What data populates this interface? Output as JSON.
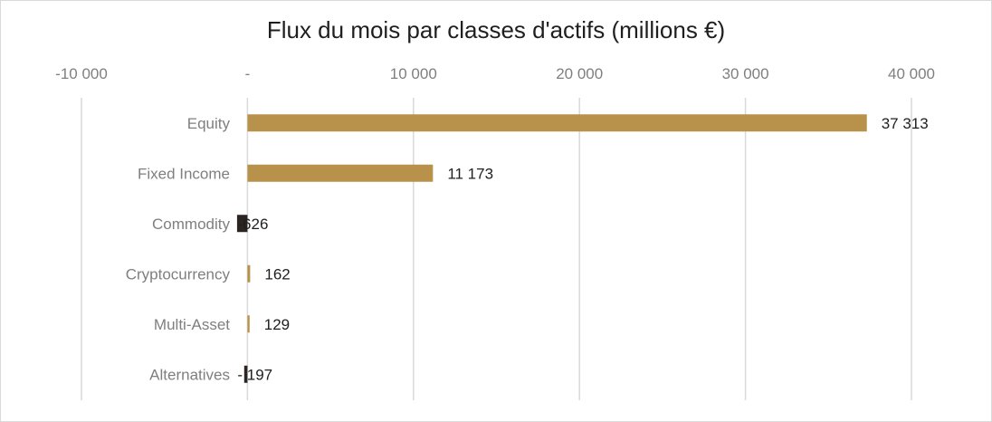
{
  "chart_data": {
    "type": "bar",
    "orientation": "horizontal",
    "title": "Flux du mois par classes d'actifs (millions €)",
    "xlabel": "",
    "ylabel": "",
    "categories": [
      "Equity",
      "Fixed Income",
      "Commodity",
      "Cryptocurrency",
      "Multi-Asset",
      "Alternatives"
    ],
    "values": [
      37313,
      11173,
      -626,
      162,
      129,
      -197
    ],
    "data_labels": [
      "37 313",
      "11 173",
      "-626",
      "162",
      "129",
      "- 197"
    ],
    "xlim": [
      -10000,
      40000
    ],
    "x_ticks": [
      -10000,
      0,
      10000,
      20000,
      30000,
      40000
    ],
    "x_tick_labels": [
      "-10 000",
      "-",
      "10 000",
      "20 000",
      "30 000",
      "40 000"
    ],
    "x_axis_position": "top",
    "grid": true,
    "legend": "none",
    "colors": {
      "positive": "#b8924a",
      "negative": "#2b2420",
      "grid": "#d9d9d9",
      "axis_text": "#7f7f7f",
      "label_text": "#1f1f1f"
    }
  }
}
